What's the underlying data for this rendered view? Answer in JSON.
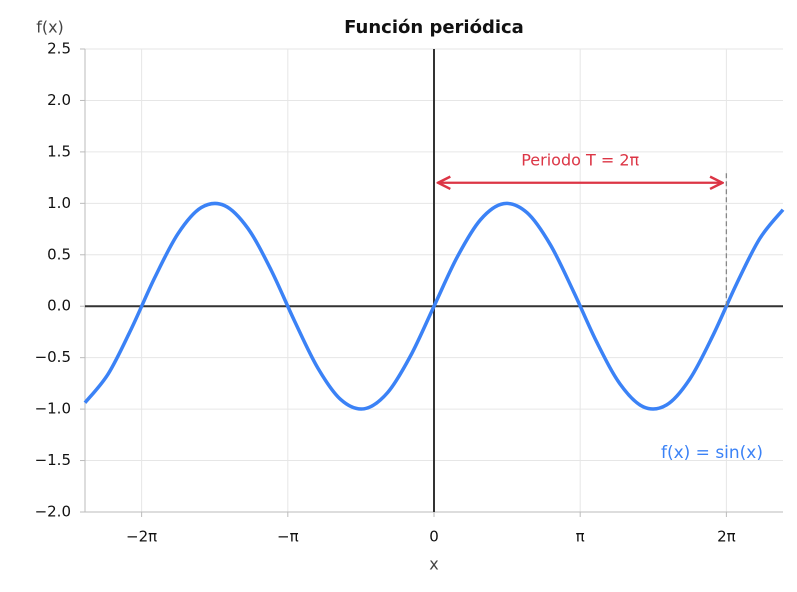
{
  "chart_data": {
    "type": "line",
    "title": "Función periódica",
    "x_label": "x",
    "y_label": "f(x)",
    "x": [
      -7.5,
      -7.0,
      -6.5,
      -6.0,
      -5.5,
      -5.0,
      -4.5,
      -4.0,
      -3.5,
      -3.0,
      -2.5,
      -2.0,
      -1.5,
      -1.0,
      -0.5,
      0,
      0.5,
      1.0,
      1.5,
      2.0,
      2.5,
      3.0,
      3.5,
      4.0,
      4.5,
      5.0,
      5.5,
      6.0,
      6.5,
      7.0,
      7.5
    ],
    "series": [
      {
        "name": "f(x) = sin(x)",
        "color": "#3b82f6",
        "values": [
          -0.938,
          -0.657,
          -0.215,
          0.279,
          0.706,
          0.959,
          0.978,
          0.757,
          0.351,
          -0.141,
          -0.598,
          -0.909,
          -0.997,
          -0.841,
          -0.479,
          0,
          0.479,
          0.841,
          0.997,
          0.909,
          0.598,
          0.141,
          -0.351,
          -0.757,
          -0.978,
          -0.959,
          -0.706,
          -0.279,
          0.215,
          0.657,
          0.938
        ]
      }
    ],
    "xlim": [
      -7.5,
      7.5
    ],
    "ylim": [
      -2.0,
      2.5
    ],
    "xticks": [
      {
        "value": -6.2832,
        "label": "−2π"
      },
      {
        "value": -3.1416,
        "label": "−π"
      },
      0,
      {
        "value": 3.1416,
        "label": "π"
      },
      {
        "value": 6.2832,
        "label": "2π"
      }
    ],
    "yticks": [
      {
        "value": -2.0,
        "label": "−2.0"
      },
      {
        "value": -1.5,
        "label": "−1.5"
      },
      {
        "value": -1.0,
        "label": "−1.0"
      },
      {
        "value": -0.5,
        "label": "−0.5"
      },
      {
        "value": 0,
        "label": "0.0"
      },
      0.5,
      {
        "value": 1.0,
        "label": "1.0"
      },
      1.5,
      {
        "value": 2.0,
        "label": "2.0"
      },
      2.5
    ],
    "grid": true,
    "annotations": [
      {
        "text": "Periodo T = 2π",
        "color": "#dc3545",
        "x_start": 0,
        "x_end": 6.2832,
        "y": 1.2,
        "guide_x": 6.2832,
        "guide_y": [
          0,
          1.3
        ]
      }
    ]
  }
}
